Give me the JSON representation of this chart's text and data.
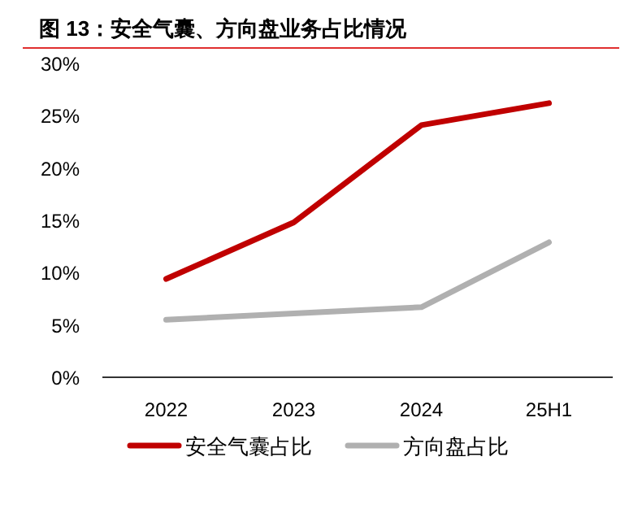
{
  "chart_data": {
    "type": "line",
    "title": "图 13：安全气囊、方向盘业务占比情况",
    "categories": [
      "2022",
      "2023",
      "2024",
      "25H1"
    ],
    "series": [
      {
        "name": "安全气囊占比",
        "color": "#c00000",
        "values": [
          9.4,
          14.8,
          24.1,
          26.2
        ]
      },
      {
        "name": "方向盘占比",
        "color": "#b0b0b0",
        "values": [
          5.5,
          6.1,
          6.7,
          12.9
        ]
      }
    ],
    "ylim": [
      0,
      30
    ],
    "yticks": [
      {
        "value": 0,
        "label": "0%"
      },
      {
        "value": 5,
        "label": "5%"
      },
      {
        "value": 10,
        "label": "10%"
      },
      {
        "value": 15,
        "label": "15%"
      },
      {
        "value": 20,
        "label": "20%"
      },
      {
        "value": 25,
        "label": "25%"
      },
      {
        "value": 30,
        "label": "30%"
      }
    ],
    "grid": false,
    "legend": "bottom",
    "marker": "none",
    "line_style": "solid"
  }
}
